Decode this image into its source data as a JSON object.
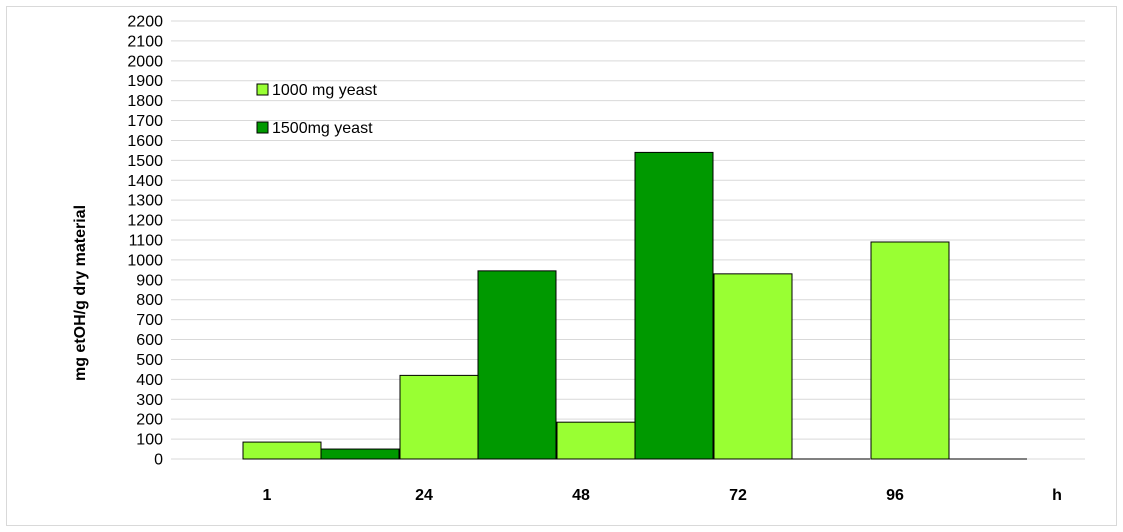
{
  "chart_data": {
    "type": "bar",
    "title": "",
    "xlabel": "h",
    "ylabel": "mg etOH/g dry material",
    "ylim": [
      0,
      2200
    ],
    "ytick_step": 100,
    "grid": true,
    "legend_position": "top-left",
    "categories": [
      "1",
      "24",
      "48",
      "72",
      "96"
    ],
    "series": [
      {
        "name": "1000 mg yeast",
        "color": "#99ff33",
        "values": [
          85,
          420,
          185,
          930,
          1090
        ]
      },
      {
        "name": "1500mg yeast",
        "color": "#009900",
        "values": [
          50,
          945,
          1540,
          0,
          0
        ]
      }
    ]
  }
}
